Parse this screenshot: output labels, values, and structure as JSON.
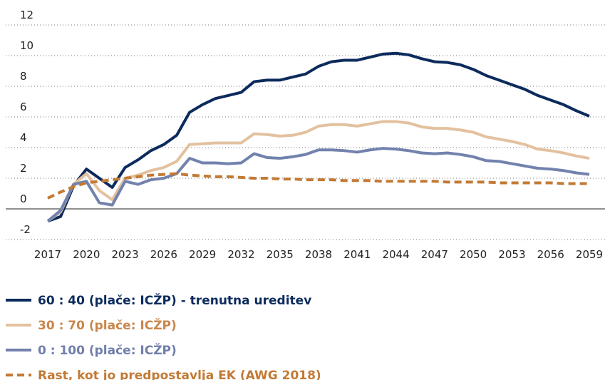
{
  "chart_data": {
    "type": "line",
    "x": [
      2017,
      2018,
      2019,
      2020,
      2021,
      2022,
      2023,
      2024,
      2025,
      2026,
      2027,
      2028,
      2029,
      2030,
      2031,
      2032,
      2033,
      2034,
      2035,
      2036,
      2037,
      2038,
      2039,
      2040,
      2041,
      2042,
      2043,
      2044,
      2045,
      2046,
      2047,
      2048,
      2049,
      2050,
      2051,
      2052,
      2053,
      2054,
      2055,
      2056,
      2057,
      2058,
      2059
    ],
    "series": [
      {
        "name": "60 : 40 (plače: ICŽP) - trenutna ureditev",
        "color": "#0c2b5c",
        "legend_text_color": "#0c2b5c",
        "dashed": false,
        "values": [
          -0.8,
          -0.5,
          1.5,
          2.6,
          2.0,
          1.4,
          2.7,
          3.2,
          3.8,
          4.2,
          4.8,
          6.3,
          6.8,
          7.2,
          7.4,
          7.6,
          8.3,
          8.4,
          8.4,
          8.6,
          8.8,
          9.3,
          9.6,
          9.7,
          9.7,
          9.9,
          10.1,
          10.15,
          10.05,
          9.8,
          9.6,
          9.55,
          9.4,
          9.1,
          8.7,
          8.4,
          8.1,
          7.8,
          7.4,
          7.1,
          6.8,
          6.4,
          6.05
        ]
      },
      {
        "name": "30 : 70 (plače: ICŽP)",
        "color": "#e3c19f",
        "legend_text_color": "#c9864a",
        "dashed": false,
        "values": [
          -0.8,
          -0.2,
          1.6,
          2.3,
          1.2,
          0.6,
          2.0,
          2.2,
          2.5,
          2.7,
          3.1,
          4.2,
          4.25,
          4.3,
          4.3,
          4.3,
          4.9,
          4.85,
          4.75,
          4.8,
          5.0,
          5.4,
          5.5,
          5.5,
          5.4,
          5.55,
          5.7,
          5.7,
          5.6,
          5.35,
          5.25,
          5.25,
          5.15,
          5.0,
          4.7,
          4.55,
          4.4,
          4.2,
          3.9,
          3.8,
          3.65,
          3.45,
          3.3
        ]
      },
      {
        "name": "0 : 100 (plače: ICŽP)",
        "color": "#7282ad",
        "legend_text_color": "#6f7fab",
        "dashed": false,
        "values": [
          -0.8,
          -0.1,
          1.6,
          1.8,
          0.4,
          0.25,
          1.8,
          1.6,
          1.9,
          2.0,
          2.3,
          3.3,
          3.0,
          3.0,
          2.95,
          3.0,
          3.6,
          3.35,
          3.3,
          3.4,
          3.55,
          3.85,
          3.85,
          3.8,
          3.7,
          3.85,
          3.95,
          3.9,
          3.8,
          3.65,
          3.6,
          3.65,
          3.55,
          3.4,
          3.15,
          3.1,
          2.95,
          2.8,
          2.65,
          2.6,
          2.5,
          2.35,
          2.25
        ]
      },
      {
        "name": "Rast, kot jo predpostavlja EK (AWG 2018)",
        "color": "#c27a35",
        "legend_text_color": "#c27a35",
        "dashed": true,
        "values": [
          0.7,
          1.1,
          1.45,
          1.7,
          1.8,
          1.9,
          2.0,
          2.1,
          2.2,
          2.25,
          2.3,
          2.2,
          2.15,
          2.1,
          2.1,
          2.05,
          2.0,
          2.0,
          1.95,
          1.95,
          1.9,
          1.9,
          1.9,
          1.85,
          1.85,
          1.85,
          1.8,
          1.8,
          1.8,
          1.8,
          1.8,
          1.75,
          1.75,
          1.75,
          1.75,
          1.7,
          1.7,
          1.7,
          1.7,
          1.7,
          1.65,
          1.65,
          1.65
        ]
      }
    ],
    "xlim": [
      2017,
      2059
    ],
    "xticks": [
      2017,
      2020,
      2023,
      2026,
      2029,
      2032,
      2035,
      2038,
      2041,
      2044,
      2047,
      2050,
      2053,
      2056,
      2059
    ],
    "ylim": [
      -2,
      12
    ],
    "yticks": [
      -2,
      0,
      2,
      4,
      6,
      8,
      10,
      12
    ],
    "grid": true
  }
}
